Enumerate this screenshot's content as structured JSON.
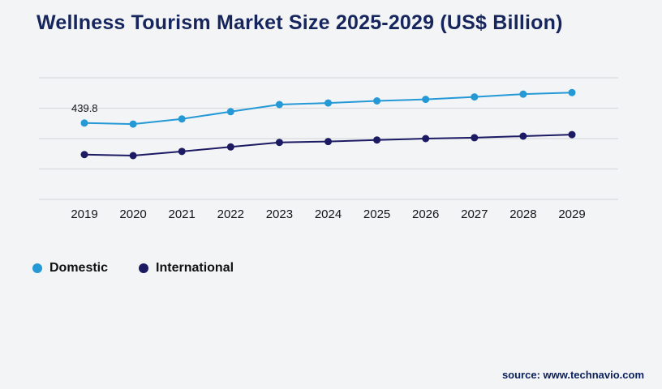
{
  "header": {
    "title": "Wellness Tourism Market Size 2025-2029 (US$ Billion)"
  },
  "chart_data": {
    "type": "line",
    "title": "Wellness Tourism Market Size 2025-2029 (US$ Billion)",
    "categories": [
      "2019",
      "2020",
      "2021",
      "2022",
      "2023",
      "2024",
      "2025",
      "2026",
      "2027",
      "2028",
      "2029"
    ],
    "series": [
      {
        "name": "Domestic",
        "color": "#2499d6",
        "values": [
          439.8,
          433.5,
          463,
          505,
          546,
          555,
          567,
          576,
          590,
          606,
          615
        ]
      },
      {
        "name": "International",
        "color": "#1c1a63",
        "values": [
          258,
          252,
          276,
          302,
          328,
          333,
          342,
          350,
          355,
          364,
          373
        ]
      }
    ],
    "ylim": [
      0,
      700
    ],
    "gridlines": 5,
    "grid": "horizontal-only",
    "legend_position": "bottom-left",
    "xlabel": "",
    "ylabel": "",
    "data_labels": [
      {
        "series": "Domestic",
        "index": 0,
        "text": "439.8"
      }
    ]
  },
  "colors": {
    "title": "#16265c",
    "gridline": "#d9dbe0",
    "tick_label": "#15151a",
    "background": "#f3f4f6"
  },
  "footer": {
    "source": "source: www.technavio.com"
  }
}
